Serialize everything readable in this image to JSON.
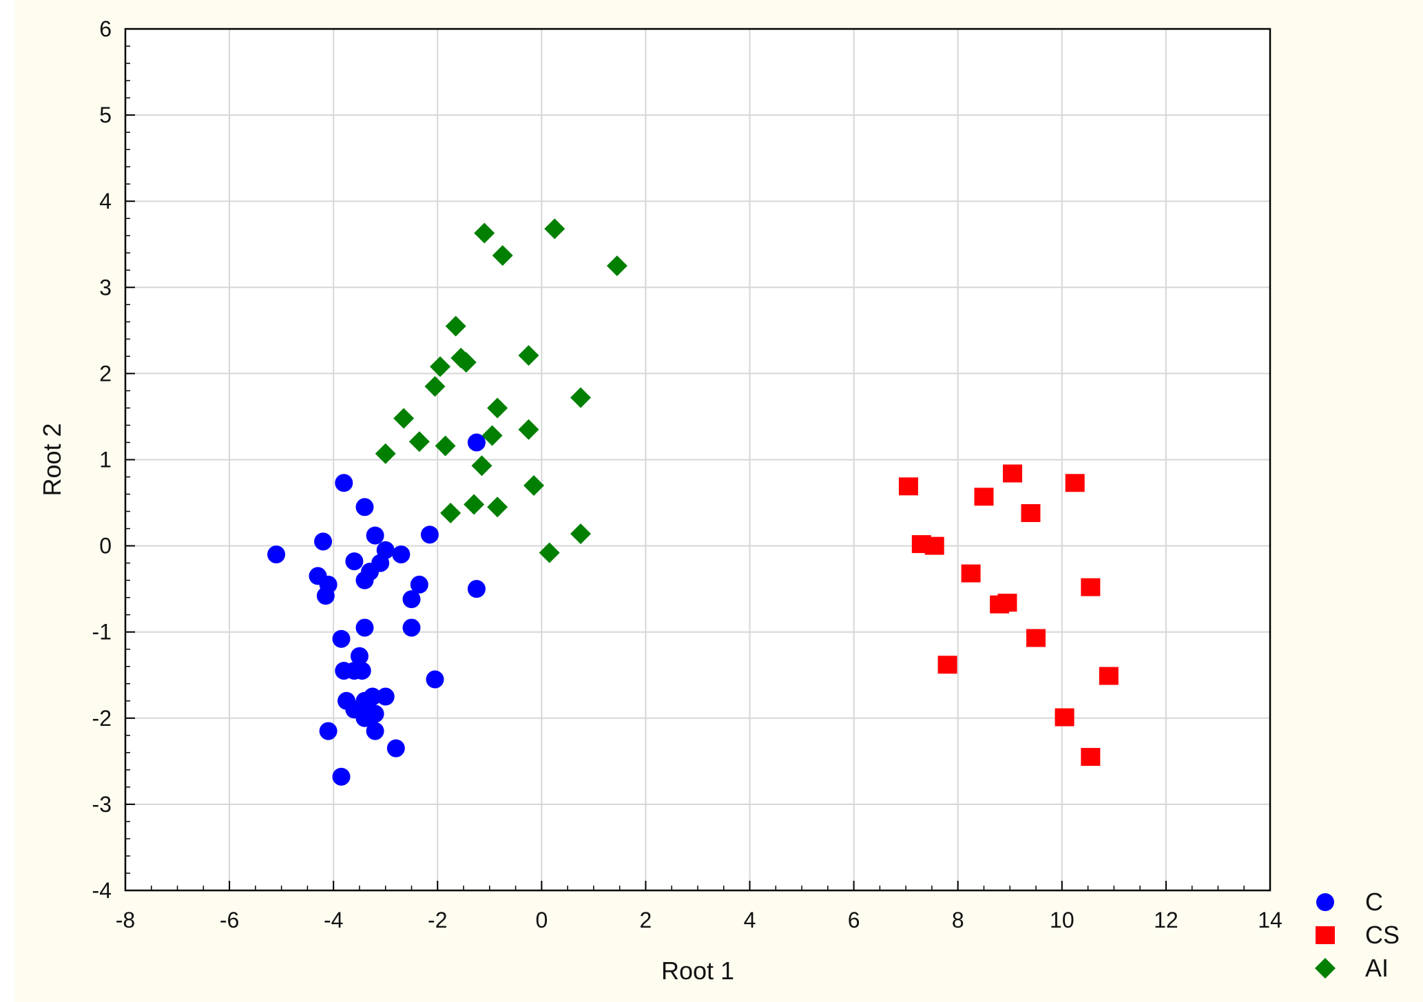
{
  "chart_data": {
    "type": "scatter",
    "title": "",
    "xlabel": "Root 1",
    "ylabel": "Root 2",
    "xlim": [
      -8,
      14
    ],
    "ylim": [
      -4,
      6
    ],
    "xticks": [
      "-8",
      "-6",
      "-4",
      "-2",
      "0",
      "2",
      "4",
      "6",
      "8",
      "10",
      "12",
      "14"
    ],
    "yticks": [
      "-4",
      "-3",
      "-2",
      "-1",
      "0",
      "1",
      "2",
      "3",
      "4",
      "5",
      "6"
    ],
    "grid": true,
    "legend_position": "bottom-right outside plot",
    "series": [
      {
        "name": "C",
        "marker": "circle",
        "color": "#0000ff",
        "points": [
          [
            -5.1,
            -0.1
          ],
          [
            -4.2,
            0.05
          ],
          [
            -4.3,
            -0.35
          ],
          [
            -4.1,
            -0.45
          ],
          [
            -4.15,
            -0.58
          ],
          [
            -3.8,
            0.73
          ],
          [
            -3.4,
            0.45
          ],
          [
            -3.2,
            0.12
          ],
          [
            -3.6,
            -0.18
          ],
          [
            -3.0,
            -0.05
          ],
          [
            -3.1,
            -0.2
          ],
          [
            -3.3,
            -0.3
          ],
          [
            -3.4,
            -0.4
          ],
          [
            -2.7,
            -0.1
          ],
          [
            -2.15,
            0.13
          ],
          [
            -2.35,
            -0.45
          ],
          [
            -2.5,
            -0.62
          ],
          [
            -1.25,
            1.2
          ],
          [
            -1.25,
            -0.5
          ],
          [
            -3.4,
            -0.95
          ],
          [
            -2.5,
            -0.95
          ],
          [
            -3.85,
            -1.08
          ],
          [
            -3.5,
            -1.28
          ],
          [
            -3.8,
            -1.45
          ],
          [
            -3.6,
            -1.45
          ],
          [
            -3.45,
            -1.45
          ],
          [
            -2.05,
            -1.55
          ],
          [
            -3.75,
            -1.8
          ],
          [
            -3.6,
            -1.9
          ],
          [
            -3.4,
            -1.8
          ],
          [
            -3.25,
            -1.75
          ],
          [
            -3.0,
            -1.75
          ],
          [
            -3.4,
            -2.0
          ],
          [
            -3.2,
            -1.95
          ],
          [
            -3.2,
            -2.15
          ],
          [
            -4.1,
            -2.15
          ],
          [
            -2.8,
            -2.35
          ],
          [
            -3.85,
            -2.68
          ]
        ]
      },
      {
        "name": "CS",
        "marker": "square",
        "color": "#ff0000",
        "points": [
          [
            7.05,
            0.69
          ],
          [
            7.3,
            0.02
          ],
          [
            7.55,
            0.0
          ],
          [
            7.8,
            -1.38
          ],
          [
            8.25,
            -0.32
          ],
          [
            8.5,
            0.57
          ],
          [
            8.8,
            -0.68
          ],
          [
            8.95,
            -0.66
          ],
          [
            9.05,
            0.84
          ],
          [
            9.4,
            0.38
          ],
          [
            9.5,
            -1.07
          ],
          [
            10.05,
            -1.99
          ],
          [
            10.25,
            0.73
          ],
          [
            10.55,
            -0.48
          ],
          [
            10.55,
            -2.45
          ],
          [
            10.9,
            -1.51
          ]
        ]
      },
      {
        "name": "AI",
        "marker": "diamond",
        "color": "#007f00",
        "points": [
          [
            -1.1,
            3.63
          ],
          [
            0.25,
            3.68
          ],
          [
            -0.75,
            3.37
          ],
          [
            1.45,
            3.25
          ],
          [
            -1.65,
            2.55
          ],
          [
            -1.55,
            2.18
          ],
          [
            -1.45,
            2.13
          ],
          [
            -1.95,
            2.08
          ],
          [
            -0.25,
            2.21
          ],
          [
            -2.05,
            1.85
          ],
          [
            0.75,
            1.72
          ],
          [
            -0.85,
            1.6
          ],
          [
            -2.65,
            1.48
          ],
          [
            -2.35,
            1.21
          ],
          [
            -1.85,
            1.16
          ],
          [
            -0.95,
            1.28
          ],
          [
            -0.25,
            1.35
          ],
          [
            -3.0,
            1.07
          ],
          [
            -1.15,
            0.93
          ],
          [
            -0.15,
            0.7
          ],
          [
            -1.3,
            0.48
          ],
          [
            -0.85,
            0.45
          ],
          [
            -1.75,
            0.38
          ],
          [
            0.75,
            0.14
          ],
          [
            0.15,
            -0.08
          ]
        ]
      }
    ]
  }
}
